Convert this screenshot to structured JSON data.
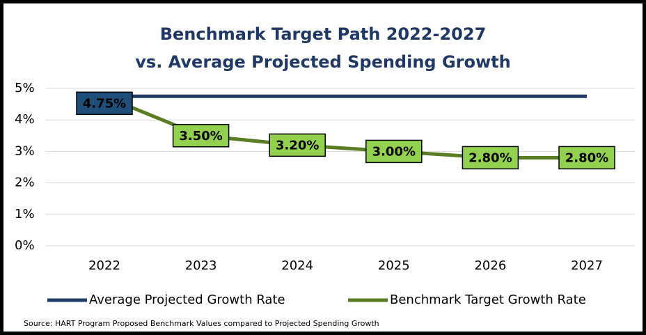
{
  "chart_data": {
    "type": "line",
    "title": [
      "Benchmark Target Path 2022-2027",
      "vs. Average Projected Spending Growth"
    ],
    "categories": [
      "2022",
      "2023",
      "2024",
      "2025",
      "2026",
      "2027"
    ],
    "series": [
      {
        "name": "Average Projected Growth Rate",
        "color": "#1f3c64",
        "label_color": "#1f4e79",
        "values": [
          4.75,
          4.75,
          4.75,
          4.75,
          4.75,
          4.75
        ],
        "value_labels": [
          "4.75%",
          null,
          null,
          null,
          null,
          null
        ]
      },
      {
        "name": "Benchmark Target Growth Rate",
        "color": "#5a7d23",
        "label_color": "#92d050",
        "values": [
          4.75,
          3.5,
          3.2,
          3.0,
          2.8,
          2.8
        ],
        "value_labels": [
          null,
          "3.50%",
          "3.20%",
          "3.00%",
          "2.80%",
          "2.80%"
        ]
      }
    ],
    "ylim": [
      0,
      5
    ],
    "yticks": [
      {
        "value": 0,
        "label": "0%"
      },
      {
        "value": 1,
        "label": "1%"
      },
      {
        "value": 2,
        "label": "2%"
      },
      {
        "value": 3,
        "label": "3%"
      },
      {
        "value": 4,
        "label": "4%"
      },
      {
        "value": 5,
        "label": "5%"
      }
    ],
    "grid": true,
    "legend": "bottom",
    "source": "Source: HART Program Proposed Benchmark Values compared to Projected Spending  Growth"
  }
}
